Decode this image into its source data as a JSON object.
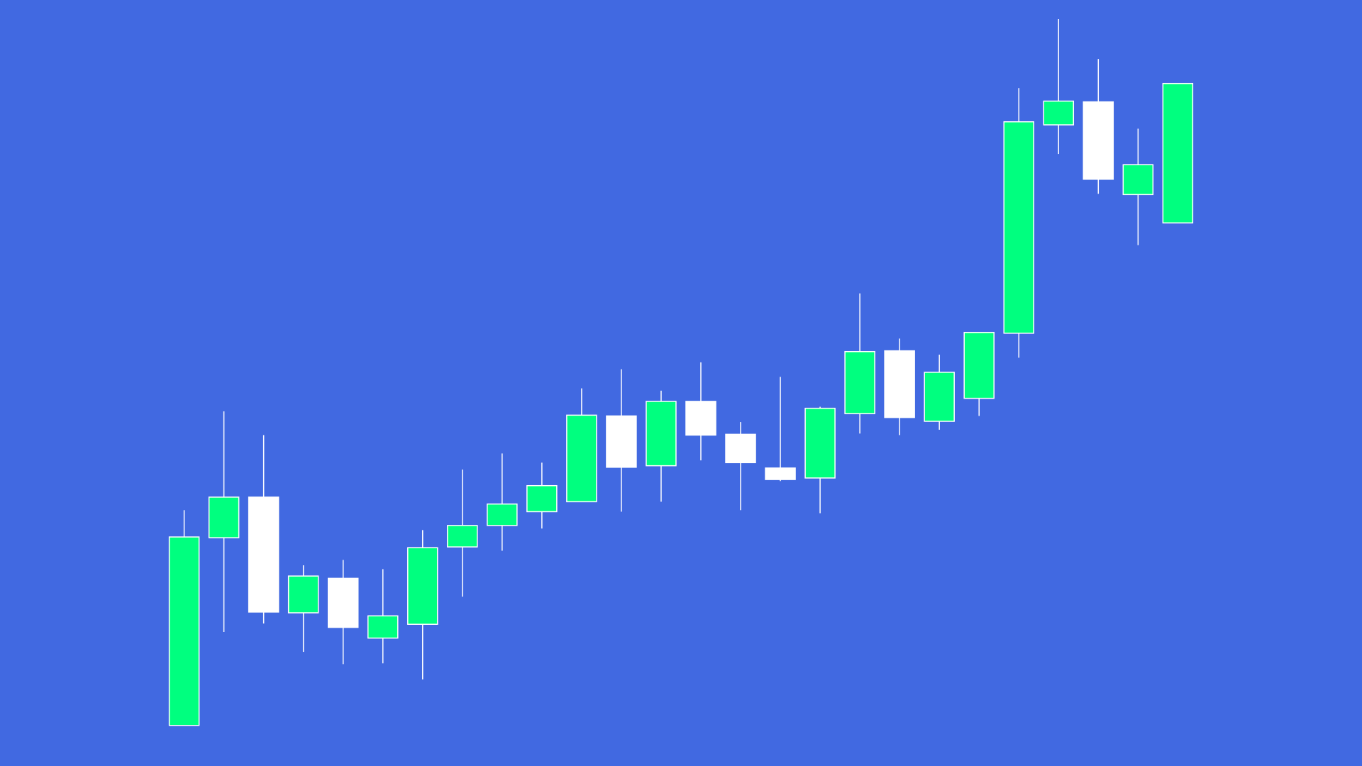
{
  "chart_data": {
    "type": "candlestick",
    "open": [
      5.3,
      29.8,
      35.1,
      20.0,
      24.5,
      16.7,
      18.5,
      28.6,
      31.4,
      33.2,
      34.5,
      45.7,
      39.2,
      47.6,
      43.3,
      38.9,
      37.6,
      46.0,
      54.2,
      45.0,
      48.0,
      56.5,
      83.7,
      86.7,
      74.6,
      70.9
    ],
    "high": [
      33.4,
      46.3,
      43.2,
      26.2,
      26.9,
      25.7,
      30.8,
      38.7,
      40.8,
      39.6,
      49.3,
      51.8,
      49.0,
      52.7,
      44.9,
      50.8,
      46.9,
      61.7,
      55.8,
      53.7,
      56.6,
      88.5,
      97.5,
      92.3,
      83.2,
      89.1
    ],
    "low": [
      5.3,
      17.5,
      18.6,
      14.9,
      13.3,
      13.4,
      11.3,
      22.1,
      28.1,
      31.0,
      34.5,
      33.2,
      34.5,
      39.9,
      33.4,
      37.2,
      33.0,
      43.4,
      43.2,
      43.9,
      45.7,
      53.3,
      79.9,
      74.7,
      68.0,
      70.9
    ],
    "close": [
      29.9,
      35.1,
      20.1,
      24.8,
      18.1,
      19.6,
      28.5,
      31.4,
      34.2,
      36.6,
      45.8,
      39.0,
      47.6,
      43.2,
      39.6,
      37.4,
      46.7,
      54.1,
      45.5,
      51.4,
      56.6,
      84.1,
      86.8,
      76.6,
      78.5,
      89.1
    ],
    "ylim": [
      0,
      100
    ],
    "up_color": "#00ff7f",
    "down_color": "#ffffff",
    "edge_color": "#ffffff",
    "background": "#4169e1"
  }
}
